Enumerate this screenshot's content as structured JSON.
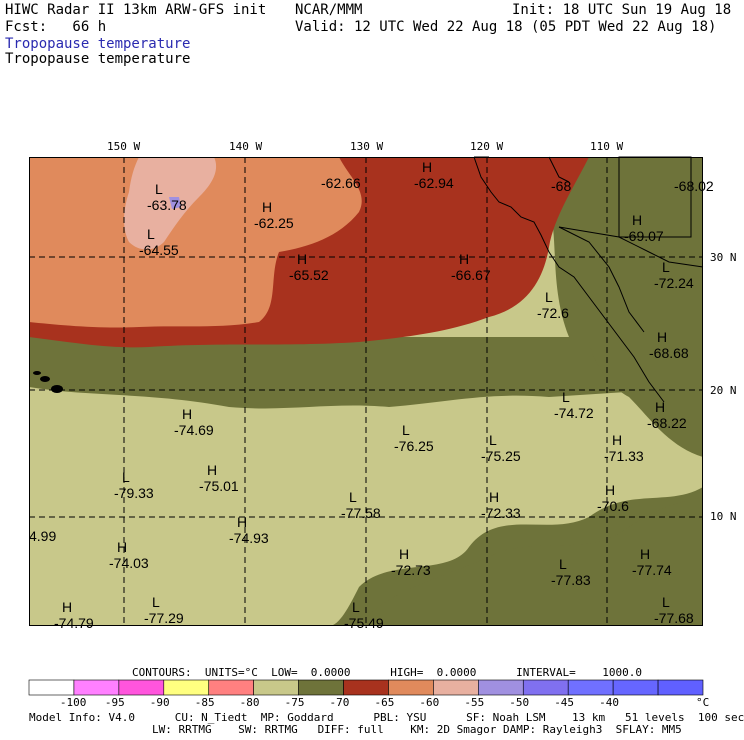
{
  "header": {
    "title": "HIWC Radar II 13km ARW-GFS init",
    "org": "NCAR/MMM",
    "init": "Init: 18 UTC Sun 19 Aug 18",
    "fcst": "Fcst:   66 h",
    "valid": "Valid: 12 UTC Wed 22 Aug 18 (05 PDT Wed 22 Aug 18)",
    "field1": "Tropopause temperature",
    "field2": "Tropopause temperature"
  },
  "axes": {
    "lon_labels": [
      "150 W",
      "140 W",
      "130 W",
      "120 W",
      "110 W"
    ],
    "lat_labels": [
      "30 N",
      "20 N",
      "10 N"
    ]
  },
  "map_labels": [
    {
      "letter": "L",
      "value": "-63.78"
    },
    {
      "letter": "L",
      "value": "-64.55"
    },
    {
      "letter": "H",
      "value": "-62.25"
    },
    {
      "letter": "",
      "value": "-62.66"
    },
    {
      "letter": "H",
      "value": "-62.94"
    },
    {
      "letter": "",
      "value": "-68"
    },
    {
      "letter": "",
      "value": "-68.02"
    },
    {
      "letter": "H",
      "value": "-65.52"
    },
    {
      "letter": "H",
      "value": "-66.67"
    },
    {
      "letter": "H",
      "value": "-69.07"
    },
    {
      "letter": "L",
      "value": "-72.24"
    },
    {
      "letter": "L",
      "value": "-72.6"
    },
    {
      "letter": "H",
      "value": "-68.68"
    },
    {
      "letter": "H",
      "value": "-74.69"
    },
    {
      "letter": "L",
      "value": "-74.72"
    },
    {
      "letter": "H",
      "value": "-68.22"
    },
    {
      "letter": "L",
      "value": "-76.25"
    },
    {
      "letter": "L",
      "value": "-75.25"
    },
    {
      "letter": "H",
      "value": "-71.33"
    },
    {
      "letter": "L",
      "value": "-79.33"
    },
    {
      "letter": "H",
      "value": "-75.01"
    },
    {
      "letter": "L",
      "value": "-77.58"
    },
    {
      "letter": "H",
      "value": "-72.33"
    },
    {
      "letter": "H",
      "value": "-70.6"
    },
    {
      "letter": "",
      "value": "4.99"
    },
    {
      "letter": "H",
      "value": "-74.93"
    },
    {
      "letter": "H",
      "value": "-74.03"
    },
    {
      "letter": "H",
      "value": "-72.73"
    },
    {
      "letter": "L",
      "value": "-77.83"
    },
    {
      "letter": "H",
      "value": "-77.74"
    },
    {
      "letter": "H",
      "value": "-74.79"
    },
    {
      "letter": "L",
      "value": "-77.29"
    },
    {
      "letter": "L",
      "value": "-75.49"
    },
    {
      "letter": "L",
      "value": "-77.68"
    }
  ],
  "colorbar": {
    "contours_line": "CONTOURS:  UNITS=°C  LOW=  0.0000      HIGH=  0.0000      INTERVAL=    1000.0",
    "colors": [
      "#ffffff",
      "#ff80ff",
      "#ff55dd",
      "#ffff80",
      "#ff8080",
      "#c8c88a",
      "#6e733a",
      "#a8321e",
      "#e08a5c",
      "#e8b0a0",
      "#a090e0",
      "#8070f0",
      "#7070ff",
      "#6666ff",
      "#6060ff"
    ],
    "tick_labels": [
      "-100",
      "-95",
      "-90",
      "-85",
      "-80",
      "-75",
      "-70",
      "-65",
      "-60",
      "-55",
      "-50",
      "-45",
      "-40"
    ],
    "unit": "°C"
  },
  "model_info": {
    "line1": "Model Info: V4.0      CU: N_Tiedt  MP: Goddard      PBL: YSU      SF: Noah LSM    13 km   51 levels  100 sec",
    "line2": "LW: RRTMG    SW: RRTMG   DIFF: full    KM: 2D Smagor DAMP: Rayleigh3  SFLAY: MM5"
  },
  "colors": {
    "c_m60": "#e08a5c",
    "c_m55": "#e8b0a0",
    "c_m65": "#a8321e",
    "c_m70": "#6e733a",
    "c_m75": "#c8c88a",
    "c_m50": "#a090e0",
    "lines": "#000000"
  }
}
